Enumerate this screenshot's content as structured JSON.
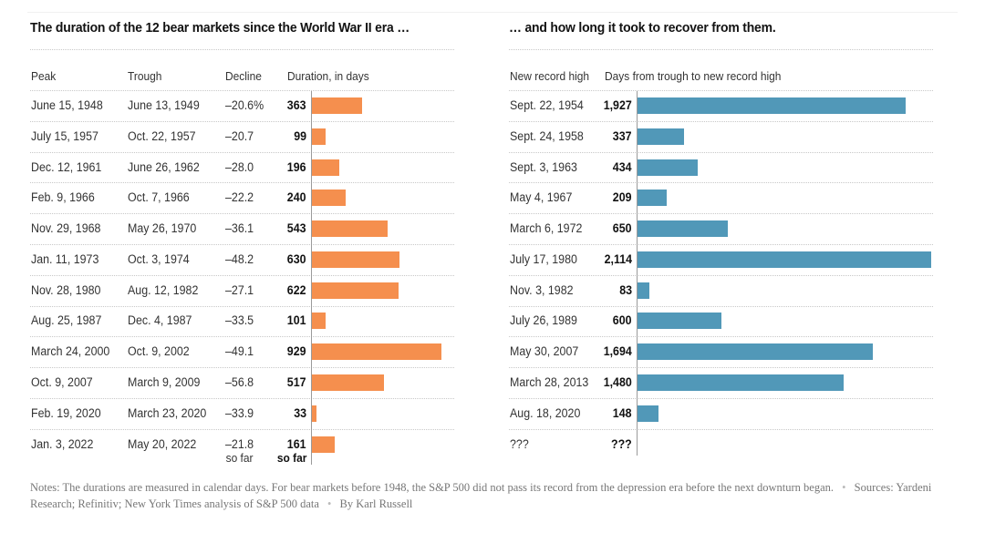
{
  "chart_data": [
    {
      "type": "bar",
      "orientation": "horizontal",
      "title": "The duration of the 12 bear markets since the World War II era …",
      "columns": [
        "Peak",
        "Trough",
        "Decline",
        "Duration, in days"
      ],
      "color": "#f58f4e",
      "rows": [
        {
          "peak": "June 15, 1948",
          "trough": "June 13, 1949",
          "decline": "–20.6%",
          "duration_label": "363",
          "duration": 363
        },
        {
          "peak": "July 15, 1957",
          "trough": "Oct. 22, 1957",
          "decline": "–20.7",
          "duration_label": "99",
          "duration": 99
        },
        {
          "peak": "Dec. 12, 1961",
          "trough": "June 26, 1962",
          "decline": "–28.0",
          "duration_label": "196",
          "duration": 196
        },
        {
          "peak": "Feb. 9, 1966",
          "trough": "Oct. 7, 1966",
          "decline": "–22.2",
          "duration_label": "240",
          "duration": 240
        },
        {
          "peak": "Nov. 29, 1968",
          "trough": "May 26, 1970",
          "decline": "–36.1",
          "duration_label": "543",
          "duration": 543
        },
        {
          "peak": "Jan. 11, 1973",
          "trough": "Oct. 3, 1974",
          "decline": "–48.2",
          "duration_label": "630",
          "duration": 630
        },
        {
          "peak": "Nov. 28, 1980",
          "trough": "Aug. 12, 1982",
          "decline": "–27.1",
          "duration_label": "622",
          "duration": 622
        },
        {
          "peak": "Aug. 25, 1987",
          "trough": "Dec. 4, 1987",
          "decline": "–33.5",
          "duration_label": "101",
          "duration": 101
        },
        {
          "peak": "March 24, 2000",
          "trough": "Oct. 9, 2002",
          "decline": "–49.1",
          "duration_label": "929",
          "duration": 929
        },
        {
          "peak": "Oct. 9, 2007",
          "trough": "March 9, 2009",
          "decline": "–56.8",
          "duration_label": "517",
          "duration": 517
        },
        {
          "peak": "Feb. 19, 2020",
          "trough": "March 23, 2020",
          "decline": "–33.9",
          "duration_label": "33",
          "duration": 33
        },
        {
          "peak": "Jan. 3, 2022",
          "trough": "May 20, 2022",
          "decline": "–21.8",
          "decline_note": "so far",
          "duration_label": "161",
          "duration_note": "so far",
          "duration": 161
        }
      ]
    },
    {
      "type": "bar",
      "orientation": "horizontal",
      "title": "… and how long it took to recover from them.",
      "columns": [
        "New record high",
        "Days from trough to new record high"
      ],
      "color": "#5198b8",
      "rows": [
        {
          "record_high": "Sept. 22, 1954",
          "days_label": "1,927",
          "days": 1927
        },
        {
          "record_high": "Sept. 24, 1958",
          "days_label": "337",
          "days": 337
        },
        {
          "record_high": "Sept. 3, 1963",
          "days_label": "434",
          "days": 434
        },
        {
          "record_high": "May 4, 1967",
          "days_label": "209",
          "days": 209
        },
        {
          "record_high": "March 6, 1972",
          "days_label": "650",
          "days": 650
        },
        {
          "record_high": "July 17, 1980",
          "days_label": "2,114",
          "days": 2114
        },
        {
          "record_high": "Nov. 3, 1982",
          "days_label": "83",
          "days": 83
        },
        {
          "record_high": "July 26, 1989",
          "days_label": "600",
          "days": 600
        },
        {
          "record_high": "May 30, 2007",
          "days_label": "1,694",
          "days": 1694
        },
        {
          "record_high": "March 28, 2013",
          "days_label": "1,480",
          "days": 1480
        },
        {
          "record_high": "Aug. 18, 2020",
          "days_label": "148",
          "days": 148
        },
        {
          "record_high": "???",
          "days_label": "???",
          "days": null
        }
      ]
    }
  ],
  "footer": {
    "notes": "Notes: The durations are measured in calendar days. For bear markets before 1948, the S&P 500 did not pass its record from the depression era before the next downturn began.",
    "separator": "•",
    "sources": "Sources: Yardeni Research; Refinitiv; New York Times analysis of S&P 500 data",
    "byline": "By Karl Russell"
  }
}
